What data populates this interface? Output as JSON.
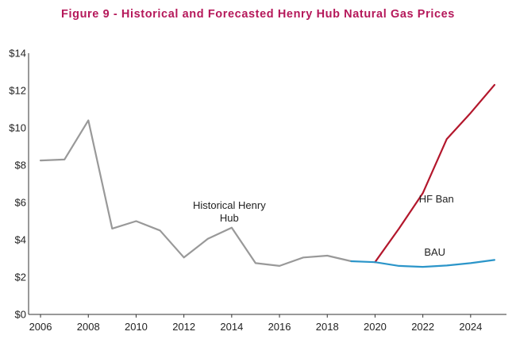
{
  "chart_data": {
    "type": "line",
    "title": "Figure 9 - Historical and Forecasted Henry Hub Natural Gas Prices",
    "xlabel": "",
    "ylabel": "",
    "xlim": [
      2005.5,
      2025.5
    ],
    "ylim": [
      0,
      14
    ],
    "x_ticks": [
      2006,
      2008,
      2010,
      2012,
      2014,
      2016,
      2018,
      2020,
      2022,
      2024
    ],
    "x_tick_labels": [
      "2006",
      "2008",
      "2010",
      "2012",
      "2014",
      "2016",
      "2018",
      "2020",
      "2022",
      "2024"
    ],
    "y_ticks": [
      0,
      2,
      4,
      6,
      8,
      10,
      12,
      14
    ],
    "y_tick_labels": [
      "$0",
      "$2",
      "$4",
      "$6",
      "$8",
      "$10",
      "$12",
      "$14"
    ],
    "grid": false,
    "series": [
      {
        "name": "Historical Henry Hub",
        "color": "#999999",
        "x": [
          2006,
          2007,
          2008,
          2009,
          2010,
          2011,
          2012,
          2013,
          2014,
          2015,
          2016,
          2017,
          2018,
          2019
        ],
        "values": [
          8.25,
          8.3,
          10.4,
          4.6,
          5.0,
          4.5,
          3.05,
          4.05,
          4.65,
          2.75,
          2.6,
          3.05,
          3.15,
          2.85
        ]
      },
      {
        "name": "HF Ban",
        "color": "#b3172c",
        "x": [
          2020,
          2021,
          2022,
          2023,
          2024,
          2025
        ],
        "values": [
          2.8,
          4.6,
          6.5,
          9.4,
          10.8,
          12.3
        ]
      },
      {
        "name": "BAU",
        "color": "#2b95c9",
        "x": [
          2019,
          2020,
          2021,
          2022,
          2023,
          2024,
          2025
        ],
        "values": [
          2.85,
          2.8,
          2.6,
          2.55,
          2.62,
          2.75,
          2.92
        ]
      }
    ],
    "annotations": [
      {
        "series": "Historical Henry Hub",
        "lines": [
          "Historical Henry",
          "Hub"
        ]
      },
      {
        "series": "HF Ban",
        "lines": [
          "HF Ban"
        ]
      },
      {
        "series": "BAU",
        "lines": [
          "BAU"
        ]
      }
    ]
  }
}
